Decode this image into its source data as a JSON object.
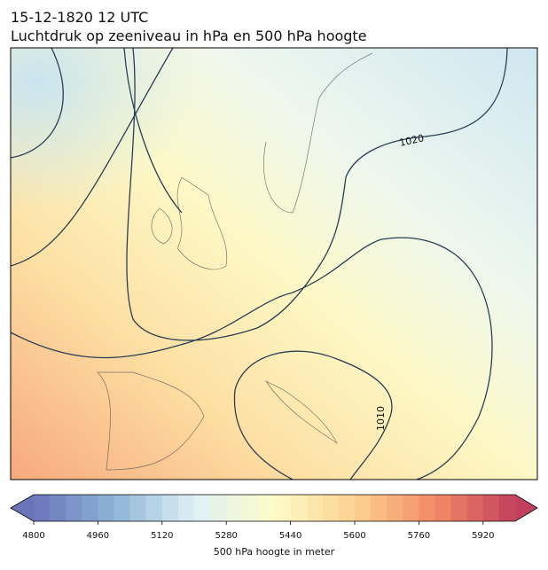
{
  "header": {
    "title": "15-12-1820 12 UTC",
    "subtitle": "Luchtdruk op zeeniveau in hPa en 500 hPa hoogte"
  },
  "map": {
    "contour_labels": [
      "1020",
      "1010"
    ]
  },
  "colorbar": {
    "label": "500 hPa hoogte in meter",
    "lim": [
      4800,
      6000
    ],
    "step": 40,
    "ticks": [
      4800,
      4960,
      5120,
      5280,
      5440,
      5600,
      5760,
      5920
    ],
    "colormap": [
      "#6a74b8",
      "#8db4d6",
      "#dff0f5",
      "#fdfbc8",
      "#fdd190",
      "#f38a66",
      "#c2405e"
    ]
  }
}
